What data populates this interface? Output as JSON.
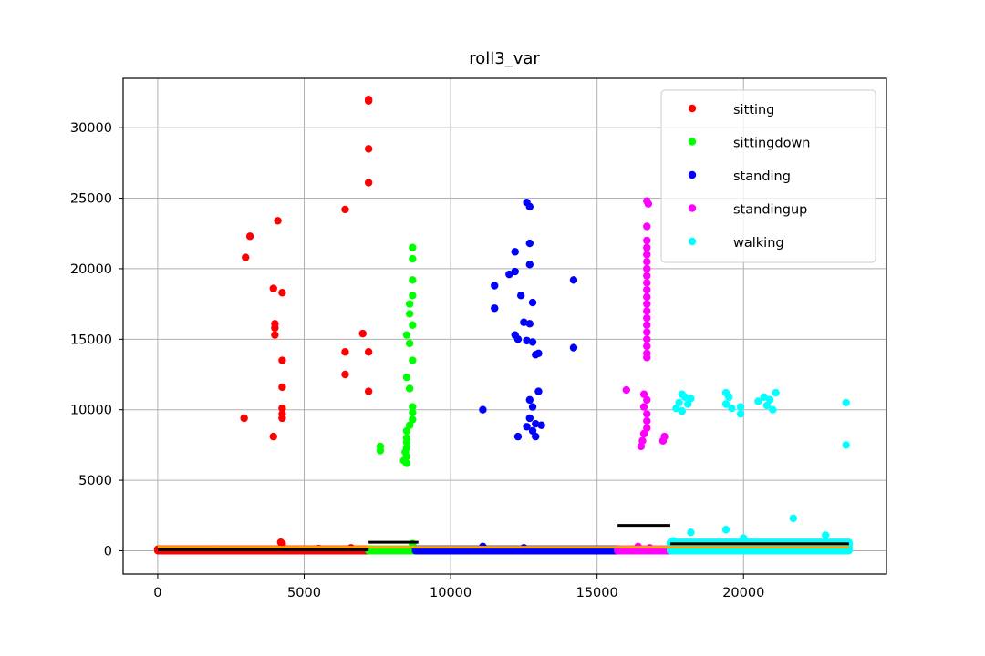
{
  "chart_data": {
    "type": "scatter",
    "title": "roll3_var",
    "xlabel": "",
    "ylabel": "",
    "xlim": [
      -1180,
      24880
    ],
    "ylim": [
      -1650,
      33500
    ],
    "xticks": [
      0,
      5000,
      10000,
      15000,
      20000
    ],
    "xtick_labels": [
      "0",
      "5000",
      "10000",
      "15000",
      "20000"
    ],
    "yticks": [
      0,
      5000,
      10000,
      15000,
      20000,
      25000,
      30000
    ],
    "ytick_labels": [
      "0",
      "5000",
      "10000",
      "15000",
      "20000",
      "25000",
      "30000"
    ],
    "grid": true,
    "legend_position": "top-right",
    "series": [
      {
        "name": "sitting",
        "color": "#ff0000",
        "points": [
          [
            3000,
            20800
          ],
          [
            3150,
            22300
          ],
          [
            2950,
            9400
          ],
          [
            4100,
            23400
          ],
          [
            3950,
            18600
          ],
          [
            4250,
            18300
          ],
          [
            4000,
            16100
          ],
          [
            4000,
            15800
          ],
          [
            4000,
            15300
          ],
          [
            4250,
            13500
          ],
          [
            4250,
            11600
          ],
          [
            4250,
            10100
          ],
          [
            4250,
            9700
          ],
          [
            4250,
            9400
          ],
          [
            3950,
            8100
          ],
          [
            7200,
            31900
          ],
          [
            7200,
            32000
          ],
          [
            7200,
            28500
          ],
          [
            7200,
            26100
          ],
          [
            6400,
            24200
          ],
          [
            7000,
            15400
          ],
          [
            6400,
            14100
          ],
          [
            7200,
            14100
          ],
          [
            6400,
            12500
          ],
          [
            7200,
            11300
          ],
          [
            4200,
            600
          ],
          [
            4250,
            500
          ],
          [
            6600,
            200
          ],
          [
            2000,
            100
          ],
          [
            5500,
            150
          ]
        ],
        "band": [
          0,
          7200,
          0,
          120
        ]
      },
      {
        "name": "sittingdown",
        "color": "#00ff00",
        "points": [
          [
            8700,
            21500
          ],
          [
            8700,
            20700
          ],
          [
            8700,
            19200
          ],
          [
            8700,
            18100
          ],
          [
            8600,
            17500
          ],
          [
            8600,
            16800
          ],
          [
            8700,
            16000
          ],
          [
            8500,
            15300
          ],
          [
            8600,
            14700
          ],
          [
            8700,
            13500
          ],
          [
            8500,
            12300
          ],
          [
            8600,
            11500
          ],
          [
            8700,
            10200
          ],
          [
            8700,
            9800
          ],
          [
            8700,
            9300
          ],
          [
            8600,
            8900
          ],
          [
            8500,
            8500
          ],
          [
            8500,
            8000
          ],
          [
            8500,
            7700
          ],
          [
            8500,
            7300
          ],
          [
            8450,
            7000
          ],
          [
            8500,
            6700
          ],
          [
            8400,
            6400
          ],
          [
            8500,
            6200
          ],
          [
            7600,
            7400
          ],
          [
            7600,
            7100
          ],
          [
            8700,
            500
          ]
        ],
        "band": [
          7200,
          8800,
          0,
          120
        ]
      },
      {
        "name": "standing",
        "color": "#0000ff",
        "points": [
          [
            12600,
            24700
          ],
          [
            12700,
            24400
          ],
          [
            12700,
            21800
          ],
          [
            12200,
            21200
          ],
          [
            12000,
            19600
          ],
          [
            12200,
            19800
          ],
          [
            12700,
            20300
          ],
          [
            14200,
            19200
          ],
          [
            11500,
            18800
          ],
          [
            12400,
            18100
          ],
          [
            12800,
            17600
          ],
          [
            11500,
            17200
          ],
          [
            12500,
            16200
          ],
          [
            12700,
            16100
          ],
          [
            12200,
            15300
          ],
          [
            12300,
            15000
          ],
          [
            12600,
            14900
          ],
          [
            12800,
            14800
          ],
          [
            12900,
            13900
          ],
          [
            13000,
            14000
          ],
          [
            14200,
            14400
          ],
          [
            13000,
            11300
          ],
          [
            11100,
            10000
          ],
          [
            12700,
            10700
          ],
          [
            12800,
            10200
          ],
          [
            12700,
            9400
          ],
          [
            12900,
            9000
          ],
          [
            13100,
            8900
          ],
          [
            12600,
            8800
          ],
          [
            12800,
            8500
          ],
          [
            12300,
            8100
          ],
          [
            12900,
            8100
          ],
          [
            11100,
            300
          ],
          [
            12500,
            200
          ]
        ],
        "band": [
          8800,
          15700,
          0,
          120
        ]
      },
      {
        "name": "standingup",
        "color": "#ff00ff",
        "points": [
          [
            16700,
            24800
          ],
          [
            16750,
            24600
          ],
          [
            16700,
            23000
          ],
          [
            16700,
            22000
          ],
          [
            16700,
            21500
          ],
          [
            16700,
            21000
          ],
          [
            16700,
            20500
          ],
          [
            16700,
            20000
          ],
          [
            16700,
            19500
          ],
          [
            16700,
            19000
          ],
          [
            16700,
            18500
          ],
          [
            16700,
            18000
          ],
          [
            16700,
            17500
          ],
          [
            16700,
            17000
          ],
          [
            16700,
            16500
          ],
          [
            16700,
            16000
          ],
          [
            16700,
            15500
          ],
          [
            16700,
            15000
          ],
          [
            16700,
            14500
          ],
          [
            16700,
            14000
          ],
          [
            16700,
            13700
          ],
          [
            16000,
            11400
          ],
          [
            16600,
            11100
          ],
          [
            16700,
            10700
          ],
          [
            16600,
            10200
          ],
          [
            16700,
            9700
          ],
          [
            16700,
            9200
          ],
          [
            16700,
            8700
          ],
          [
            16600,
            8300
          ],
          [
            16550,
            7800
          ],
          [
            16500,
            7400
          ],
          [
            17300,
            8100
          ],
          [
            17250,
            7800
          ],
          [
            16400,
            300
          ],
          [
            16800,
            200
          ]
        ],
        "band": [
          15700,
          17500,
          0,
          120
        ]
      },
      {
        "name": "walking",
        "color": "#00ffff",
        "points": [
          [
            17900,
            11100
          ],
          [
            18000,
            10900
          ],
          [
            18200,
            10800
          ],
          [
            17800,
            10500
          ],
          [
            18100,
            10400
          ],
          [
            17700,
            10100
          ],
          [
            17900,
            9900
          ],
          [
            19400,
            11200
          ],
          [
            19500,
            10900
          ],
          [
            19400,
            10400
          ],
          [
            19600,
            10100
          ],
          [
            19900,
            10200
          ],
          [
            19900,
            9700
          ],
          [
            20500,
            10600
          ],
          [
            20700,
            10900
          ],
          [
            20900,
            10700
          ],
          [
            21100,
            11200
          ],
          [
            20800,
            10300
          ],
          [
            21000,
            10000
          ],
          [
            23500,
            10500
          ],
          [
            23500,
            7500
          ],
          [
            21700,
            2300
          ],
          [
            19400,
            1500
          ],
          [
            18200,
            1300
          ],
          [
            22800,
            1100
          ],
          [
            20000,
            900
          ],
          [
            17600,
            700
          ]
        ],
        "band": [
          17500,
          23600,
          0,
          600
        ]
      }
    ],
    "mean_lines": [
      {
        "x0": 0,
        "x1": 23600,
        "y": 250,
        "color": "#ffa500"
      },
      {
        "x0": 7200,
        "x1": 8900,
        "y": 600,
        "color": "#000000"
      },
      {
        "x0": 15700,
        "x1": 17500,
        "y": 1800,
        "color": "#000000"
      },
      {
        "x0": 17500,
        "x1": 23600,
        "y": 500,
        "color": "#000000"
      },
      {
        "x0": 0,
        "x1": 7200,
        "y": 60,
        "color": "#000000"
      }
    ]
  }
}
